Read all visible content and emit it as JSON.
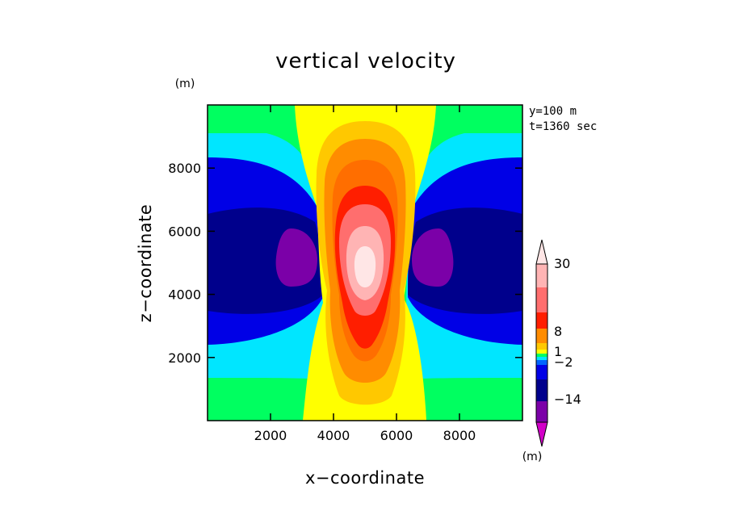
{
  "chart_data": {
    "type": "heatmap",
    "subtype": "filled-contour",
    "title": "vertical velocity",
    "xlabel": "x−coordinate",
    "ylabel": "z−coordinate",
    "x_unit": "(m)",
    "y_unit": "(m)",
    "xlim": [
      0,
      10000
    ],
    "ylim": [
      0,
      10000
    ],
    "xticks": [
      2000,
      4000,
      6000,
      8000
    ],
    "yticks": [
      2000,
      4000,
      6000,
      8000
    ],
    "xtick_labels": [
      "2000",
      "4000",
      "6000",
      "8000"
    ],
    "ytick_labels": [
      "2000",
      "4000",
      "6000",
      "8000"
    ],
    "annotations": [
      "y=100 m",
      "t=1360 sec"
    ],
    "colorbar": {
      "unit": "(m)",
      "labels": [
        "30",
        "8",
        "1",
        "−2",
        "−14"
      ],
      "levels": [
        -14,
        -10,
        -6,
        -2,
        -1,
        0,
        1,
        2,
        4,
        8,
        14,
        20,
        30
      ],
      "colors": [
        "#d200c8",
        "#7b00a8",
        "#00008c",
        "#0000e6",
        "#0064ff",
        "#00e6ff",
        "#00ff60",
        "#ffff00",
        "#ffc800",
        "#ff8c00",
        "#ff1e00",
        "#ff6e6e",
        "#ffb4b4",
        "#ffe6e6"
      ]
    },
    "field_structure": {
      "updraft_center": [
        5000,
        5000
      ],
      "updraft_max_level": 30,
      "downdraft_centers": [
        [
          2700,
          5200
        ],
        [
          7300,
          5200
        ]
      ],
      "downdraft_min_level": -14
    }
  }
}
